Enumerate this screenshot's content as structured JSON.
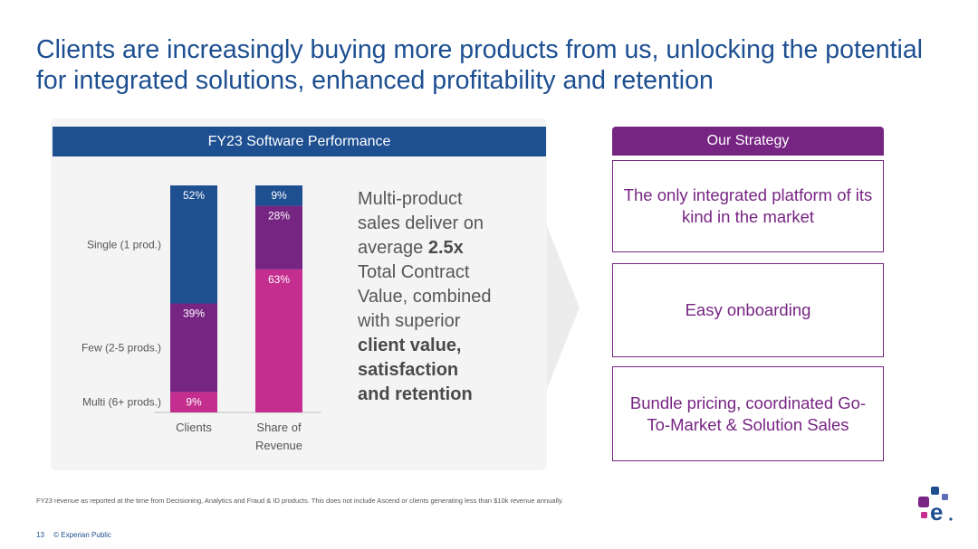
{
  "slide": {
    "title": "Clients are increasingly buying more products from us, unlocking the potential for integrated solutions, enhanced profitability and retention",
    "panel_header": "FY23 Software Performance",
    "description": {
      "line1": "Multi-product",
      "line2": "sales deliver on",
      "line3_pre": "average ",
      "line3_bold": "2.5x",
      "line4": "Total Contract",
      "line5": "Value, combined",
      "line6": "with superior",
      "bold1": "client value,",
      "bold2": "satisfaction",
      "bold3": "and retention"
    },
    "strategy": {
      "header": "Our Strategy",
      "items": [
        "The only integrated platform of its kind in the market",
        "Easy onboarding",
        "Bundle pricing, coordinated Go-To-Market & Solution Sales"
      ]
    },
    "footnote": "FY23 revenue as reported at the time from Decisioning, Analytics and Fraud & ID products. This does not include Ascend or clients generating less than $10k revenue annually.",
    "page_number": "13",
    "classification": "© Experian Public",
    "colors": {
      "title": "#1d4f91",
      "single": "#1d4f91",
      "few": "#772583",
      "multi": "#c42e8e",
      "strategy": "#772583"
    }
  },
  "chart_data": {
    "type": "bar",
    "stacked": true,
    "normalized": true,
    "categories": [
      "Clients",
      "Share of Revenue"
    ],
    "series": [
      {
        "name": "Multi (6+ prods.)",
        "values": [
          9,
          63
        ],
        "labels": [
          "9%",
          "63%"
        ]
      },
      {
        "name": "Few (2-5 prods.)",
        "values": [
          39,
          28
        ],
        "labels": [
          "39%",
          "28%"
        ]
      },
      {
        "name": "Single (1 prod.)",
        "values": [
          52,
          9
        ],
        "labels": [
          "52%",
          "9%"
        ]
      }
    ],
    "category_labels": [
      [
        "Clients"
      ],
      [
        "Share of",
        "Revenue"
      ]
    ],
    "ylim": [
      0,
      100
    ],
    "legend": "left"
  }
}
